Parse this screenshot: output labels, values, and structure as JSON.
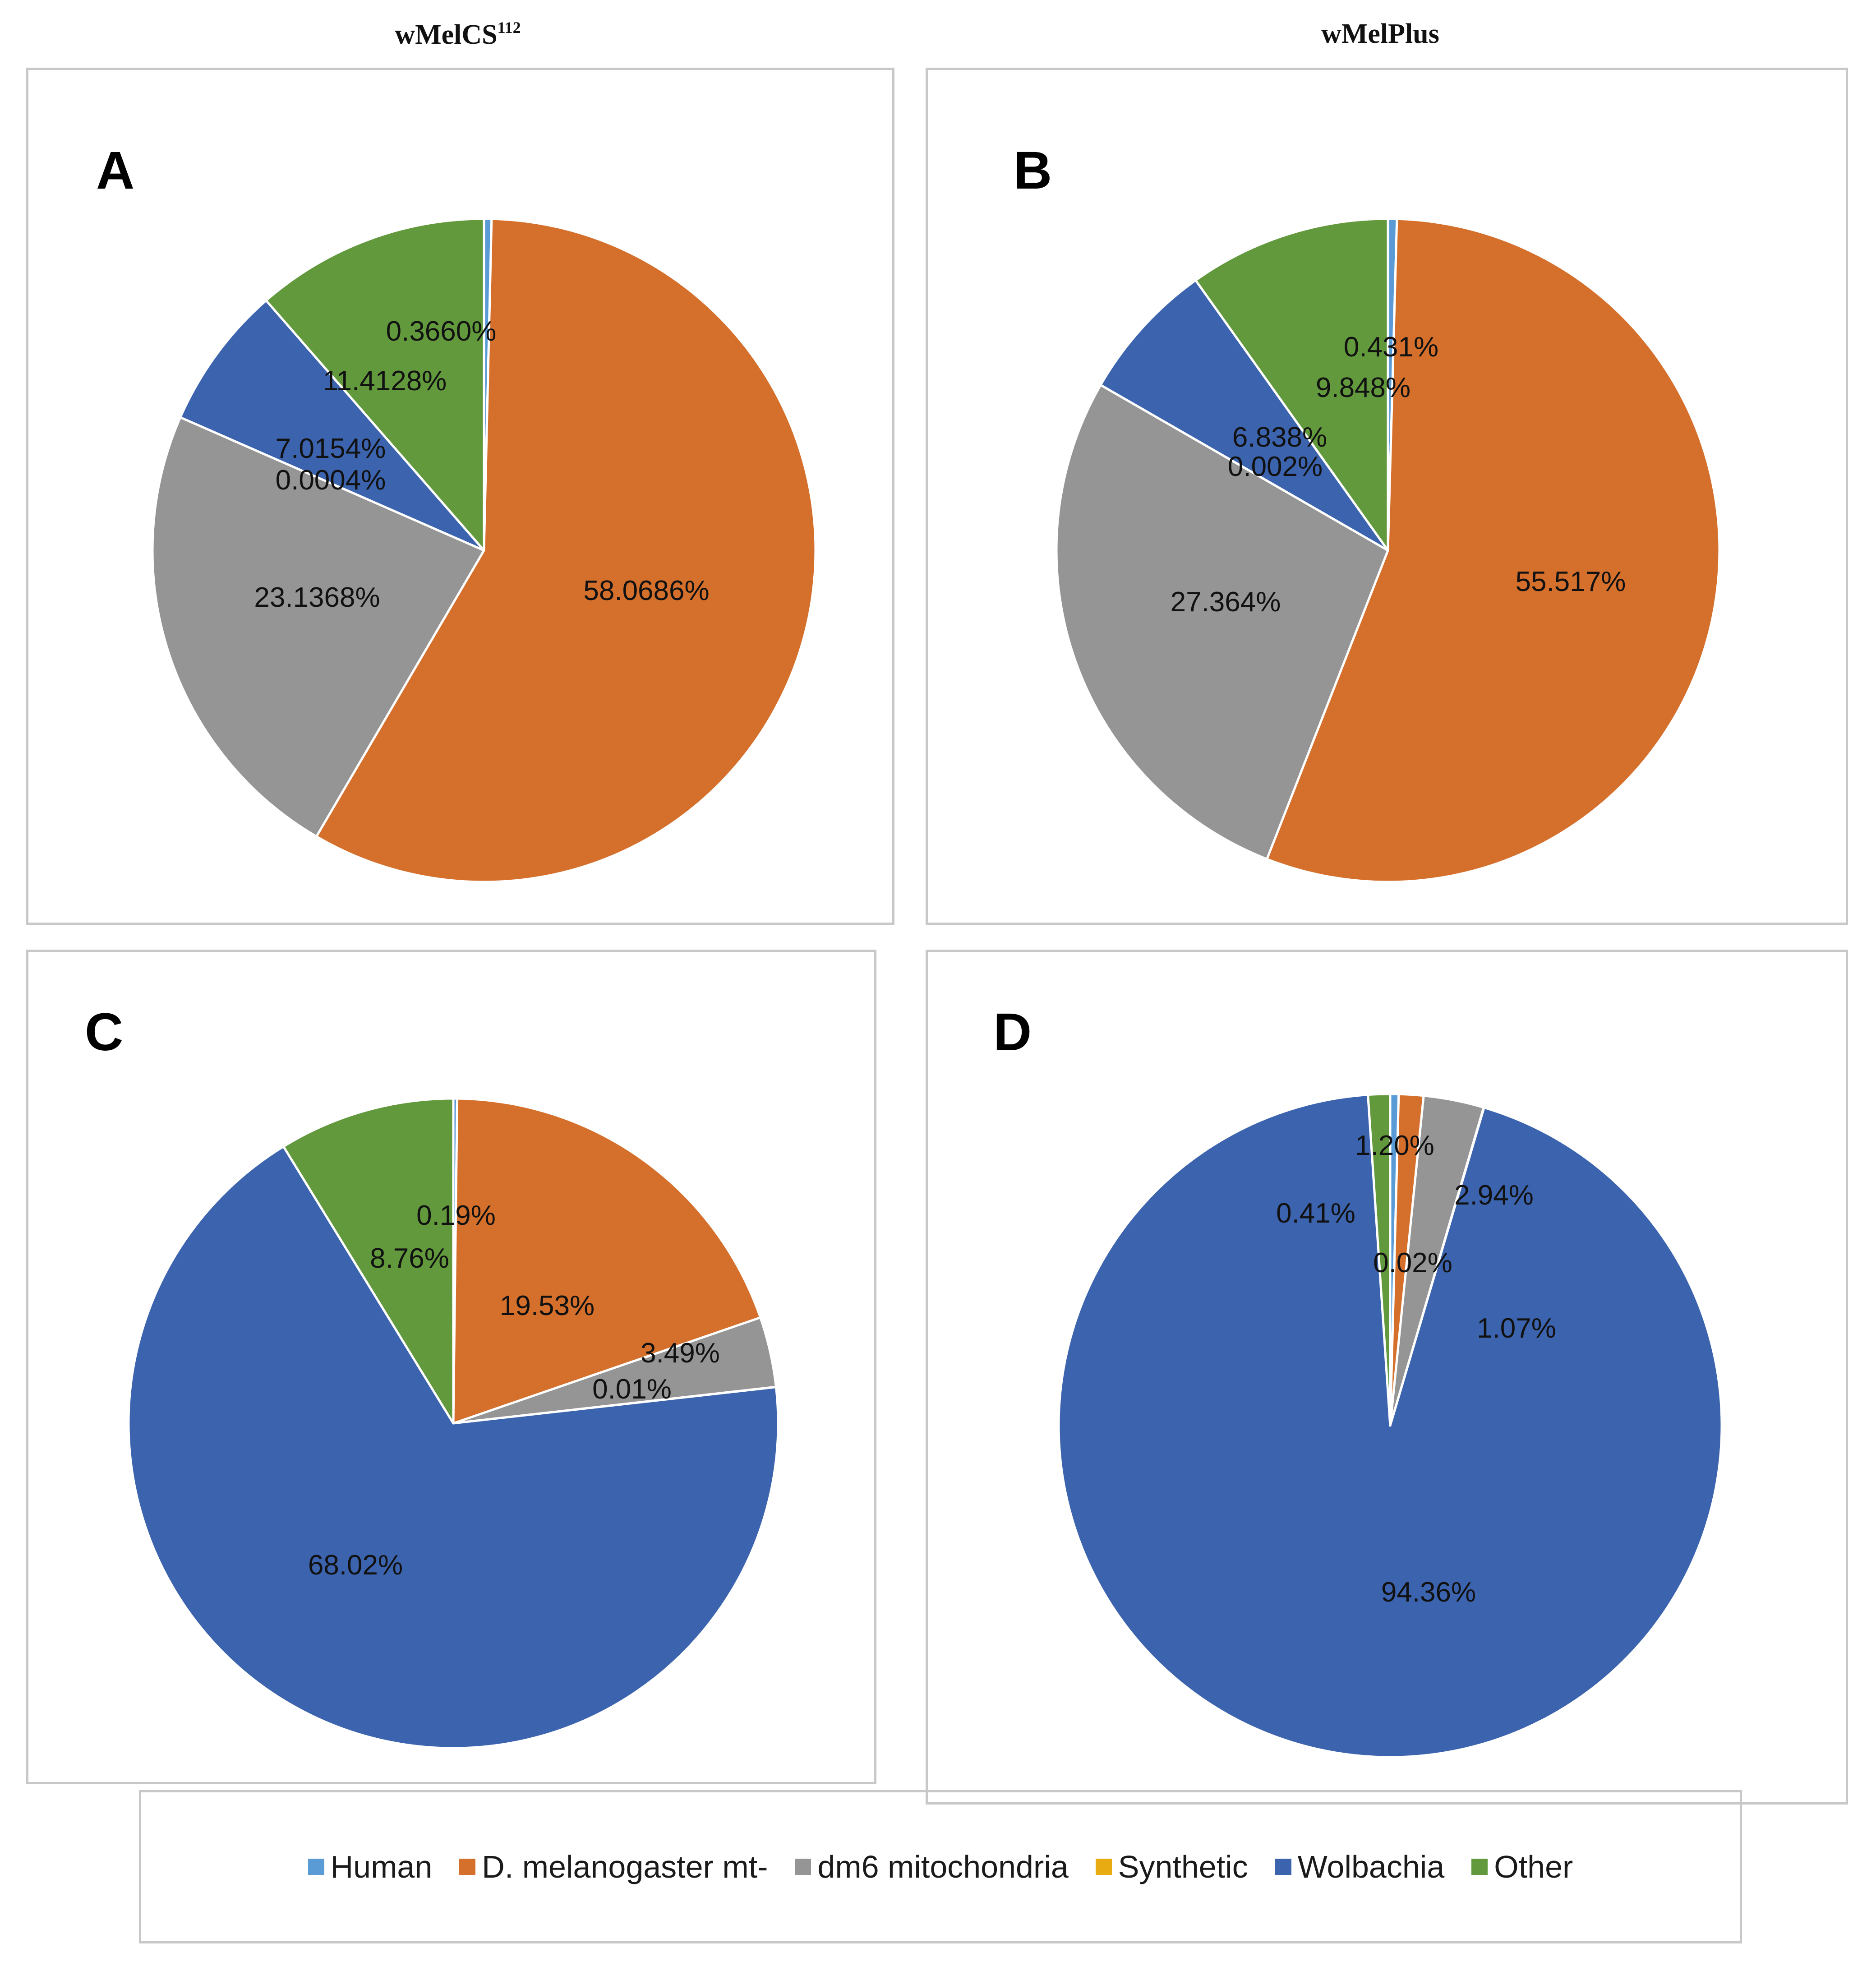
{
  "column_titles": [
    {
      "text": "wMelCS",
      "superscript": "112"
    },
    {
      "text": "wMelPlus",
      "superscript": ""
    }
  ],
  "legend": [
    {
      "name": "Human",
      "color": "#5b9bd5"
    },
    {
      "name": "D. melanogaster mt-",
      "color": "#d4702c"
    },
    {
      "name": "dm6 mitochondria",
      "color": "#959595"
    },
    {
      "name": "Synthetic",
      "color": "#e8ab12"
    },
    {
      "name": "Wolbachia",
      "color": "#3c63ad"
    },
    {
      "name": "Other",
      "color": "#62993d"
    }
  ],
  "chart_data": [
    {
      "type": "pie",
      "panel": "A",
      "column": "wMelCS112",
      "categories": [
        "Human",
        "D. melanogaster mt-",
        "dm6 mitochondria",
        "Synthetic",
        "Wolbachia",
        "Other"
      ],
      "values": [
        0.366,
        58.0686,
        23.1368,
        0.0004,
        7.0154,
        11.4128
      ],
      "labels": [
        "0.3660%",
        "58.0686%",
        "23.1368%",
        "0.0004%",
        "7.0154%",
        "11.4128%"
      ]
    },
    {
      "type": "pie",
      "panel": "B",
      "column": "wMelPlus",
      "categories": [
        "Human",
        "D. melanogaster mt-",
        "dm6 mitochondria",
        "Synthetic",
        "Wolbachia",
        "Other"
      ],
      "values": [
        0.431,
        55.517,
        27.364,
        0.002,
        6.838,
        9.848
      ],
      "labels": [
        "0.431%",
        "55.517%",
        "27.364%",
        "0.002%",
        "6.838%",
        "9.848%"
      ]
    },
    {
      "type": "pie",
      "panel": "C",
      "column": "wMelCS112",
      "categories": [
        "Human",
        "D. melanogaster mt-",
        "dm6 mitochondria",
        "Synthetic",
        "Wolbachia",
        "Other"
      ],
      "values": [
        0.19,
        19.53,
        3.49,
        0.01,
        68.02,
        8.76
      ],
      "labels": [
        "0.19%",
        "19.53%",
        "3.49%",
        "0.01%",
        "68.02%",
        "8.76%"
      ]
    },
    {
      "type": "pie",
      "panel": "D",
      "column": "wMelPlus",
      "categories": [
        "Human",
        "D. melanogaster mt-",
        "dm6 mitochondria",
        "Synthetic",
        "Wolbachia",
        "Other"
      ],
      "values": [
        0.41,
        1.2,
        2.94,
        0.02,
        94.36,
        1.07
      ],
      "labels": [
        "0.41%",
        "1.20%",
        "2.94%",
        "0.02%",
        "94.36%",
        "1.07%"
      ]
    }
  ]
}
